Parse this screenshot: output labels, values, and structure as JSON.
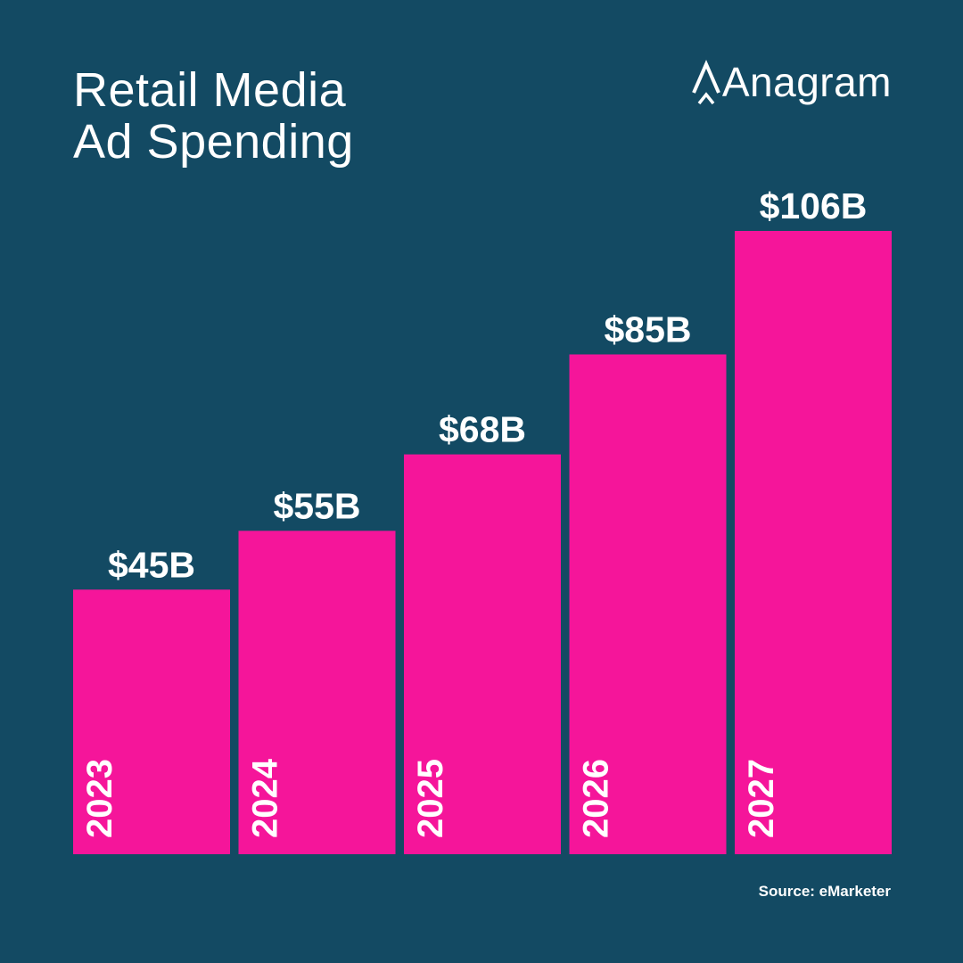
{
  "header": {
    "title_lines": [
      "Retail Media",
      "Ad Spending"
    ],
    "brand": "Anagram"
  },
  "footer": {
    "source": "Source: eMarketer"
  },
  "colors": {
    "background": "#134a63",
    "bar": "#f5159a",
    "text": "#ffffff"
  },
  "icons": {
    "logo": "anagram-a-caret-icon"
  },
  "chart_data": {
    "type": "bar",
    "title": "Retail Media Ad Spending",
    "categories": [
      "2023",
      "2024",
      "2025",
      "2026",
      "2027"
    ],
    "values": [
      45,
      55,
      68,
      85,
      106
    ],
    "data_labels": [
      "$45B",
      "$55B",
      "$68B",
      "$85B",
      "$106B"
    ],
    "unit": "B",
    "xlabel": "",
    "ylabel": "",
    "ylim": [
      0,
      106
    ],
    "grid": false,
    "legend": "none",
    "category_labels": "inside bars, rotated vertical"
  }
}
